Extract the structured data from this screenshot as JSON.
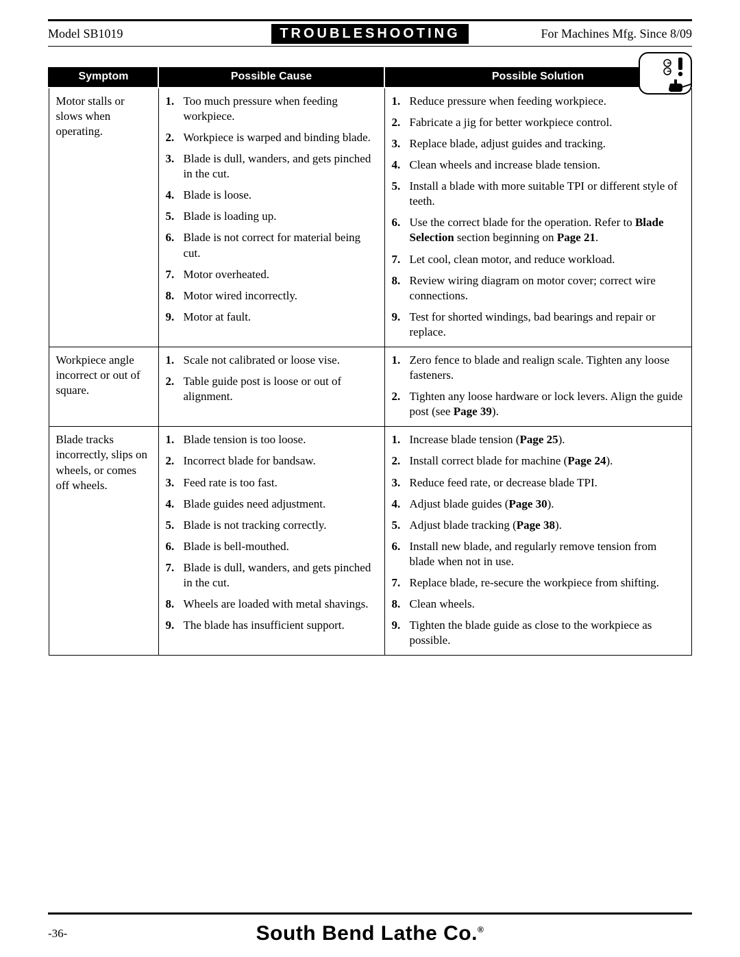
{
  "header": {
    "left": "Model SB1019",
    "center": "TROUBLESHOOTING",
    "right": "For Machines Mfg. Since 8/09"
  },
  "columns": {
    "c1": "Symptom",
    "c2": "Possible Cause",
    "c3": "Possible Solution"
  },
  "rows": [
    {
      "symptom": "Motor stalls or slows when operating.",
      "causes": [
        "Too much pressure when feeding workpiece.",
        "Workpiece is warped and binding blade.",
        "Blade is dull, wanders, and gets pinched in the cut.",
        "Blade is loose.",
        "Blade is loading up.",
        "Blade is not correct for material being cut.",
        "Motor overheated.",
        "Motor wired incorrectly.",
        "Motor at fault."
      ],
      "solutions": [
        [
          {
            "t": "Reduce pressure when feeding workpiece."
          }
        ],
        [
          {
            "t": "Fabricate a jig for better workpiece control."
          }
        ],
        [
          {
            "t": "Replace blade, adjust guides and tracking."
          }
        ],
        [
          {
            "t": "Clean wheels and increase blade tension."
          }
        ],
        [
          {
            "t": "Install a blade with more suitable TPI or different style of teeth."
          }
        ],
        [
          {
            "t": "Use the correct blade for the operation. Refer to "
          },
          {
            "t": "Blade Selection",
            "b": true
          },
          {
            "t": " section beginning on "
          },
          {
            "t": "Page 21",
            "b": true
          },
          {
            "t": "."
          }
        ],
        [
          {
            "t": "Let cool, clean motor, and reduce workload."
          }
        ],
        [
          {
            "t": "Review wiring diagram on motor cover; correct wire connections."
          }
        ],
        [
          {
            "t": "Test for shorted windings, bad bearings and repair or replace."
          }
        ]
      ]
    },
    {
      "symptom": "Workpiece angle incorrect or out of square.",
      "causes": [
        "Scale not calibrated or loose vise.",
        "Table guide post is loose or out of alignment."
      ],
      "solutions": [
        [
          {
            "t": "Zero fence to blade and realign scale. Tighten any loose fasteners."
          }
        ],
        [
          {
            "t": "Tighten any loose hardware or lock levers. Align the guide post (see "
          },
          {
            "t": "Page 39",
            "b": true
          },
          {
            "t": ")."
          }
        ]
      ]
    },
    {
      "symptom": "Blade tracks incorrectly, slips on wheels, or comes off wheels.",
      "causes": [
        "Blade tension is too loose.",
        "Incorrect blade for bandsaw.",
        "Feed rate is too fast.",
        "Blade guides need adjustment.",
        "Blade is not tracking correctly.",
        "Blade is bell-mouthed.",
        "Blade is dull, wanders, and gets pinched in the cut.",
        "Wheels are loaded with metal shavings.",
        "The blade has insufficient support."
      ],
      "solutions": [
        [
          {
            "t": "Increase blade tension ("
          },
          {
            "t": "Page 25",
            "b": true
          },
          {
            "t": ")."
          }
        ],
        [
          {
            "t": "Install correct blade for machine ("
          },
          {
            "t": "Page 24",
            "b": true
          },
          {
            "t": ")."
          }
        ],
        [
          {
            "t": "Reduce feed rate, or decrease blade TPI."
          }
        ],
        [
          {
            "t": "Adjust blade guides ("
          },
          {
            "t": "Page 30",
            "b": true
          },
          {
            "t": ")."
          }
        ],
        [
          {
            "t": "Adjust blade tracking ("
          },
          {
            "t": "Page 38",
            "b": true
          },
          {
            "t": ")."
          }
        ],
        [
          {
            "t": "Install new blade, and regularly remove tension from blade when not in use."
          }
        ],
        [
          {
            "t": "Replace blade, re-secure the workpiece from shifting."
          }
        ],
        [
          {
            "t": "Clean wheels."
          }
        ],
        [
          {
            "t": "Tighten the blade guide as close to the workpiece as possible."
          }
        ]
      ]
    }
  ],
  "footer": {
    "page": "-36-",
    "brand": "South Bend Lathe Co."
  }
}
